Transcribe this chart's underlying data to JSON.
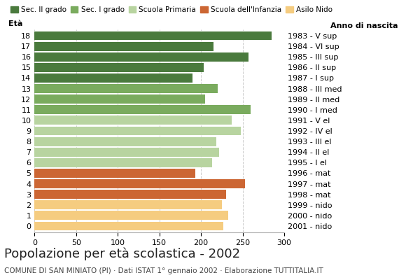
{
  "ages": [
    18,
    17,
    16,
    15,
    14,
    13,
    12,
    11,
    10,
    9,
    8,
    7,
    6,
    5,
    4,
    3,
    2,
    1,
    0
  ],
  "values": [
    285,
    215,
    257,
    203,
    190,
    220,
    205,
    260,
    237,
    248,
    218,
    222,
    213,
    193,
    253,
    230,
    225,
    233,
    227
  ],
  "right_labels": [
    "1983 - V sup",
    "1984 - VI sup",
    "1985 - III sup",
    "1986 - II sup",
    "1987 - I sup",
    "1988 - III med",
    "1989 - II med",
    "1990 - I med",
    "1991 - V el",
    "1992 - IV el",
    "1993 - III el",
    "1994 - II el",
    "1995 - I el",
    "1996 - mat",
    "1997 - mat",
    "1998 - mat",
    "1999 - nido",
    "2000 - nido",
    "2001 - nido"
  ],
  "colors_by_age": {
    "18": "#4a7a3d",
    "17": "#4a7a3d",
    "16": "#4a7a3d",
    "15": "#4a7a3d",
    "14": "#4a7a3d",
    "13": "#7aab5e",
    "12": "#7aab5e",
    "11": "#7aab5e",
    "10": "#b8d4a0",
    "9": "#b8d4a0",
    "8": "#b8d4a0",
    "7": "#b8d4a0",
    "6": "#b8d4a0",
    "5": "#cc6633",
    "4": "#cc6633",
    "3": "#cc6633",
    "2": "#f5cc80",
    "1": "#f5cc80",
    "0": "#f5cc80"
  },
  "legend_items": [
    [
      "Sec. II grado",
      "#4a7a3d"
    ],
    [
      "Sec. I grado",
      "#7aab5e"
    ],
    [
      "Scuola Primaria",
      "#b8d4a0"
    ],
    [
      "Scuola dell'Infanzia",
      "#cc6633"
    ],
    [
      "Asilo Nido",
      "#f5cc80"
    ]
  ],
  "title": "Popolazione per età scolastica - 2002",
  "subtitle": "COMUNE DI SAN MINIATO (PI) · Dati ISTAT 1° gennaio 2002 · Elaborazione TUTTITALIA.IT",
  "xlabel_eta": "Età",
  "xlabel_anno": "Anno di nascita",
  "xlim": [
    0,
    300
  ],
  "xticks": [
    0,
    50,
    100,
    150,
    200,
    250,
    300
  ],
  "background_color": "#ffffff",
  "grid_color": "#cccccc",
  "bar_height": 0.85,
  "title_fontsize": 13,
  "subtitle_fontsize": 7.5,
  "legend_fontsize": 7.5,
  "axis_label_fontsize": 8,
  "tick_fontsize": 8
}
